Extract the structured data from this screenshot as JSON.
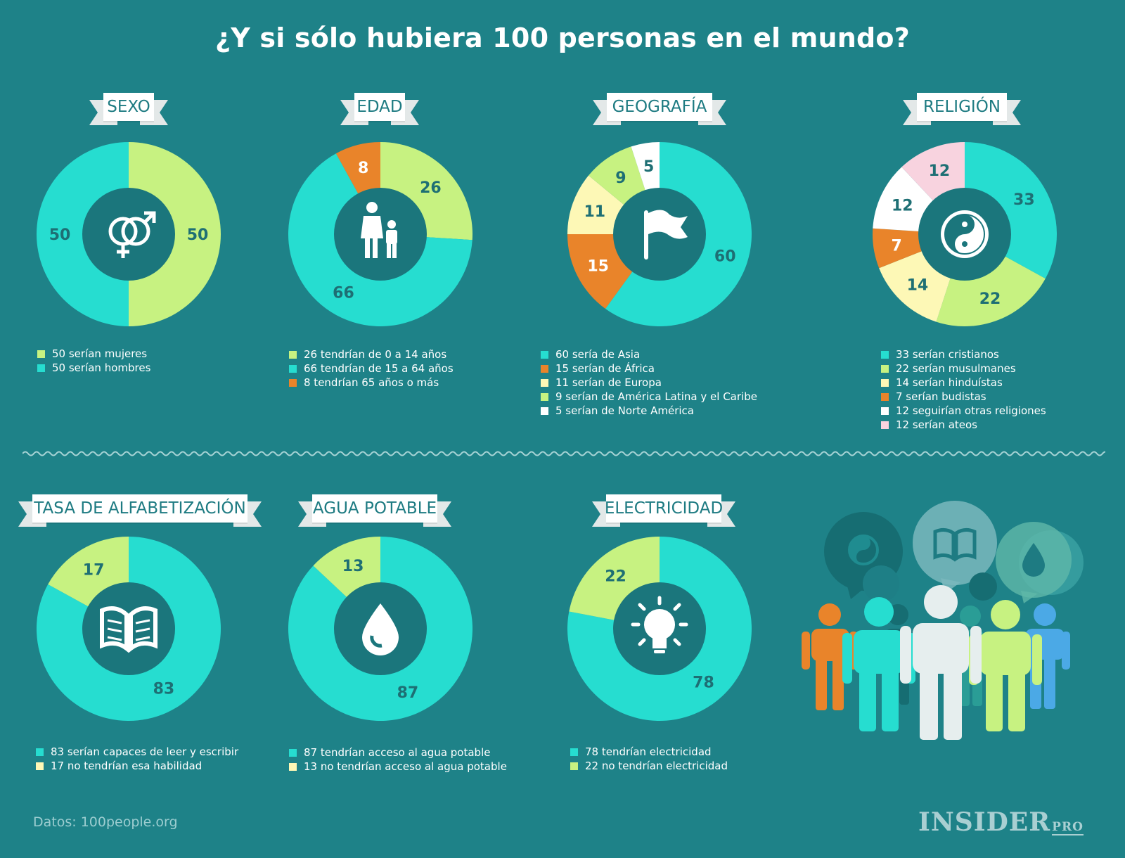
{
  "title": "¿Y si sólo hubiera 100 personas en el mundo?",
  "source": "Datos: 100people.org",
  "logo": {
    "text": "INSIDER",
    "suffix": "PRO"
  },
  "colors": {
    "background": "#1e8288",
    "teal": "#26ddd0",
    "lime": "#c7f281",
    "orange": "#e9842a",
    "cream": "#fdf8b6",
    "white": "#ffffff",
    "pink": "#f8d3df",
    "hole": "#1b767c",
    "label_dark": "#1e6f74"
  },
  "chart_data": [
    {
      "type": "pie",
      "title": "SEXO",
      "icon": "gender-icon",
      "slices": [
        {
          "value": 50,
          "color": "#c7f281",
          "legend": "50 serían mujeres"
        },
        {
          "value": 50,
          "color": "#26ddd0",
          "legend": "50 serían hombres"
        }
      ]
    },
    {
      "type": "pie",
      "title": "EDAD",
      "icon": "mother-child-icon",
      "slices": [
        {
          "value": 26,
          "color": "#c7f281",
          "legend": "26 tendrían de 0 a 14 años"
        },
        {
          "value": 66,
          "color": "#26ddd0",
          "legend": "66 tendrían de 15 a 64 años"
        },
        {
          "value": 8,
          "color": "#e9842a",
          "legend": "8 tendrían 65 años o más"
        }
      ]
    },
    {
      "type": "pie",
      "title": "GEOGRAFÍA",
      "icon": "flag-icon",
      "slices": [
        {
          "value": 60,
          "color": "#26ddd0",
          "legend": "60 sería de Asia"
        },
        {
          "value": 15,
          "color": "#e9842a",
          "legend": "15 serían de África"
        },
        {
          "value": 11,
          "color": "#fdf8b6",
          "legend": "11 serían de Europa"
        },
        {
          "value": 9,
          "color": "#c7f281",
          "legend": "9 serían de América Latina y el Caribe"
        },
        {
          "value": 5,
          "color": "#ffffff",
          "legend": "5 serían de Norte América"
        }
      ]
    },
    {
      "type": "pie",
      "title": "RELIGIÓN",
      "icon": "yin-yang-icon",
      "slices": [
        {
          "value": 33,
          "color": "#26ddd0",
          "legend": "33 serían cristianos"
        },
        {
          "value": 22,
          "color": "#c7f281",
          "legend": "22 serían musulmanes"
        },
        {
          "value": 14,
          "color": "#fdf8b6",
          "legend": "14 serían hinduístas"
        },
        {
          "value": 7,
          "color": "#e9842a",
          "legend": "7 serían budistas"
        },
        {
          "value": 12,
          "color": "#ffffff",
          "legend": "12 seguirían otras religiones"
        },
        {
          "value": 12,
          "color": "#f8d3df",
          "legend": "12 serían ateos"
        }
      ]
    },
    {
      "type": "pie",
      "title": "TASA DE ALFABETIZACIÓN",
      "icon": "open-book-icon",
      "slices": [
        {
          "value": 83,
          "color": "#26ddd0",
          "legend": "83 serían capaces de leer y escribir"
        },
        {
          "value": 17,
          "color": "#c7f281",
          "legend": "17 no tendrían esa habilidad"
        }
      ]
    },
    {
      "type": "pie",
      "title": "AGUA POTABLE",
      "icon": "water-drop-icon",
      "slices": [
        {
          "value": 87,
          "color": "#26ddd0",
          "legend": "87 tendrían acceso al agua potable"
        },
        {
          "value": 13,
          "color": "#c7f281",
          "legend": "13 no tendrían acceso al agua potable"
        }
      ]
    },
    {
      "type": "pie",
      "title": "ELECTRICIDAD",
      "icon": "light-bulb-icon",
      "slices": [
        {
          "value": 78,
          "color": "#26ddd0",
          "legend": "78 tendrían electricidad"
        },
        {
          "value": 22,
          "color": "#c7f281",
          "legend": "22 no tendrían electricidad"
        }
      ]
    }
  ]
}
